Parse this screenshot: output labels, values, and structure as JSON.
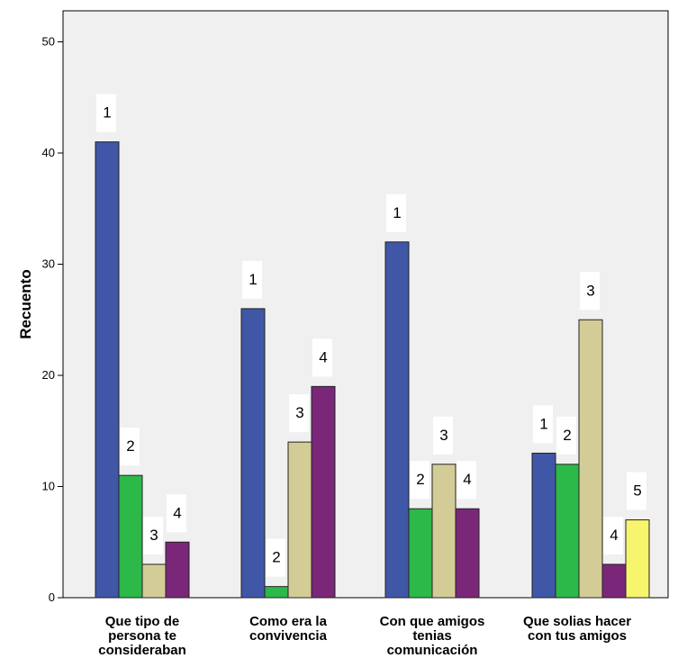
{
  "chart_data": {
    "type": "bar",
    "ylabel": "Recuento",
    "xlabel": "",
    "ylim": [
      0,
      52
    ],
    "yticks": [
      0,
      10,
      20,
      30,
      40,
      50
    ],
    "grid": false,
    "colors": [
      "#3F57A6",
      "#2DB84A",
      "#D4CC96",
      "#7B2779",
      "#F7F46E"
    ],
    "groups": [
      {
        "label": [
          "Que tipo de",
          "persona te",
          "consideraban"
        ],
        "bars": [
          {
            "value": 41,
            "label": "1"
          },
          {
            "value": 11,
            "label": "2"
          },
          {
            "value": 3,
            "label": "3"
          },
          {
            "value": 5,
            "label": "4"
          }
        ]
      },
      {
        "label": [
          "Como era la",
          "convivencia"
        ],
        "bars": [
          {
            "value": 26,
            "label": "1"
          },
          {
            "value": 1,
            "label": "2"
          },
          {
            "value": 14,
            "label": "3"
          },
          {
            "value": 19,
            "label": "4"
          }
        ]
      },
      {
        "label": [
          "Con que amigos",
          "tenias",
          "comunicación"
        ],
        "bars": [
          {
            "value": 32,
            "label": "1"
          },
          {
            "value": 8,
            "label": "2"
          },
          {
            "value": 12,
            "label": "3"
          },
          {
            "value": 8,
            "label": "4"
          }
        ]
      },
      {
        "label": [
          "Que solias hacer",
          "con tus amigos"
        ],
        "bars": [
          {
            "value": 13,
            "label": "1"
          },
          {
            "value": 12,
            "label": "2"
          },
          {
            "value": 25,
            "label": "3"
          },
          {
            "value": 3,
            "label": "4"
          },
          {
            "value": 7,
            "label": "5"
          }
        ]
      }
    ]
  }
}
